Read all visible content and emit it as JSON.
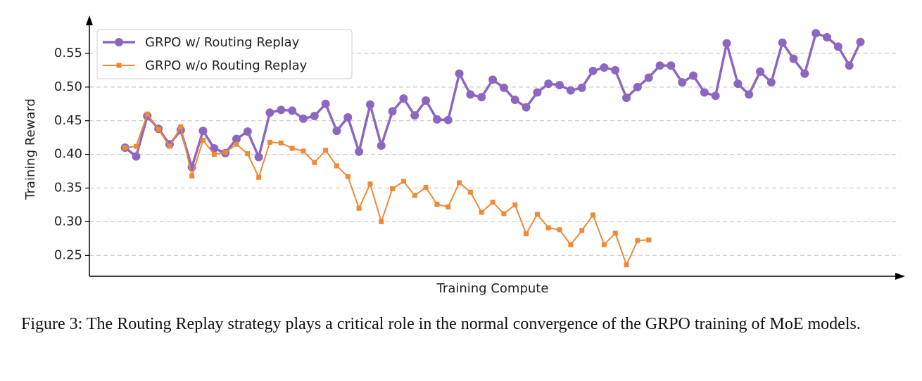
{
  "chart_data": {
    "type": "line",
    "xlabel": "Training Compute",
    "ylabel": "Training Reward",
    "xlim": [
      -3.2,
      69
    ],
    "ylim": [
      0.219,
      0.598
    ],
    "yticks": [
      0.25,
      {
        "value": 0.3,
        "label": "0.30"
      },
      0.35,
      {
        "value": 0.4,
        "label": "0.40"
      },
      0.45,
      {
        "value": 0.5,
        "label": "0.50"
      },
      0.55
    ],
    "grid": true,
    "legend": "upper left",
    "series": [
      {
        "name": "GRPO w/ Routing Replay",
        "color": "#8c67c0",
        "marker": "circle",
        "x": [
          0,
          1,
          2,
          3,
          4,
          5,
          6,
          7,
          8,
          9,
          10,
          11,
          12,
          13,
          14,
          15,
          16,
          17,
          18,
          19,
          20,
          21,
          22,
          23,
          24,
          25,
          26,
          27,
          28,
          29,
          30,
          31,
          32,
          33,
          34,
          35,
          36,
          37,
          38,
          39,
          40,
          41,
          42,
          43,
          44,
          45,
          46,
          47,
          48,
          49,
          50,
          51,
          52,
          53,
          54,
          55,
          56,
          57,
          58,
          59,
          60,
          61,
          62,
          63,
          64,
          65,
          66
        ],
        "values": [
          0.41,
          0.397,
          0.457,
          0.438,
          0.415,
          0.436,
          0.381,
          0.435,
          0.409,
          0.402,
          0.423,
          0.434,
          0.396,
          0.462,
          0.466,
          0.465,
          0.453,
          0.457,
          0.475,
          0.435,
          0.455,
          0.404,
          0.474,
          0.413,
          0.464,
          0.483,
          0.458,
          0.48,
          0.452,
          0.451,
          0.52,
          0.489,
          0.485,
          0.511,
          0.499,
          0.481,
          0.47,
          0.492,
          0.505,
          0.503,
          0.495,
          0.499,
          0.524,
          0.529,
          0.525,
          0.484,
          0.5,
          0.514,
          0.532,
          0.532,
          0.507,
          0.517,
          0.492,
          0.487,
          0.565,
          0.505,
          0.489,
          0.523,
          0.507,
          0.566,
          0.542,
          0.52,
          0.58,
          0.574,
          0.56,
          0.532,
          0.567
        ]
      },
      {
        "name": "GRPO w/o Routing Replay",
        "color": "#ee8a35",
        "marker": "square",
        "x": [
          0,
          1,
          2,
          3,
          4,
          5,
          6,
          7,
          8,
          9,
          10,
          11,
          12,
          13,
          14,
          15,
          16,
          17,
          18,
          19,
          20,
          21,
          22,
          23,
          24,
          25,
          26,
          27,
          28,
          29,
          30,
          31,
          32,
          33,
          34,
          35,
          36,
          37,
          38,
          39,
          40,
          41,
          42,
          43,
          44,
          45,
          46,
          47
        ],
        "values": [
          0.41,
          0.412,
          0.46,
          0.437,
          0.412,
          0.441,
          0.368,
          0.421,
          0.4,
          0.403,
          0.415,
          0.401,
          0.366,
          0.418,
          0.417,
          0.409,
          0.405,
          0.388,
          0.406,
          0.383,
          0.367,
          0.32,
          0.356,
          0.3,
          0.349,
          0.36,
          0.339,
          0.351,
          0.326,
          0.322,
          0.358,
          0.344,
          0.314,
          0.329,
          0.312,
          0.325,
          0.282,
          0.311,
          0.291,
          0.288,
          0.266,
          0.287,
          0.31,
          0.266,
          0.283,
          0.236,
          0.272,
          0.273
        ]
      }
    ]
  },
  "caption": "Figure 3: The Routing Replay strategy plays a critical role in the normal convergence of the GRPO training of MoE models."
}
